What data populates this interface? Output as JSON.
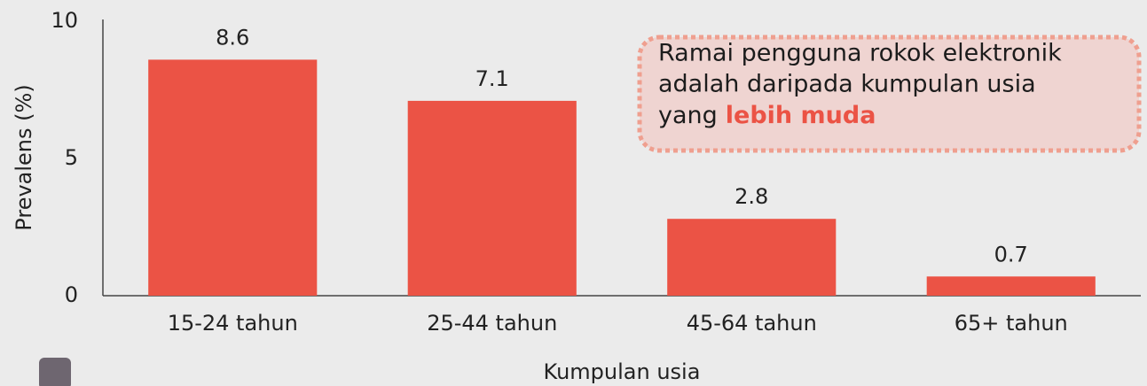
{
  "chart_data": {
    "type": "bar",
    "categories": [
      "15-24 tahun",
      "25-44 tahun",
      "45-64 tahun",
      "65+ tahun"
    ],
    "values": [
      8.6,
      7.1,
      2.8,
      0.7
    ],
    "color": "#eb5345",
    "ylim": [
      0,
      10
    ],
    "yticks": [
      0,
      5,
      10
    ],
    "grid": false,
    "xlabel": "Kumpulan usia",
    "ylabel": "Prevalens (%)",
    "annotation": {
      "lines": [
        "Ramai pengguna rokok elektronik",
        "adalah daripada kumpulan usia",
        "yang"
      ],
      "highlight": "lebih muda"
    }
  }
}
